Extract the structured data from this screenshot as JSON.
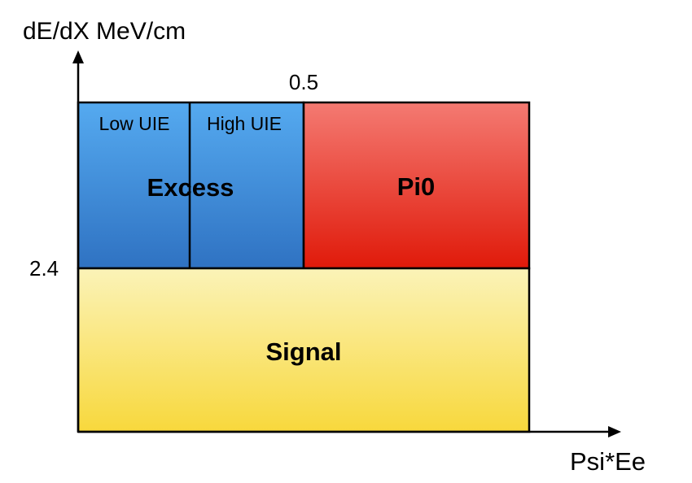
{
  "axes": {
    "y_label": "dE/dX MeV/cm",
    "x_label": "Psi*Ee",
    "y_threshold_label": "2.4",
    "x_threshold_label": "0.5"
  },
  "regions": {
    "excess": {
      "label": "Excess",
      "sub_low": "Low UIE",
      "sub_high": "High UIE",
      "color_top": "#55aaf0",
      "color_bottom": "#2f72c2"
    },
    "pi0": {
      "label": "Pi0",
      "color_top": "#f47a72",
      "color_bottom": "#e01a0a"
    },
    "signal": {
      "label": "Signal",
      "color_top": "#fbf3b8",
      "color_bottom": "#f8d83c"
    }
  }
}
